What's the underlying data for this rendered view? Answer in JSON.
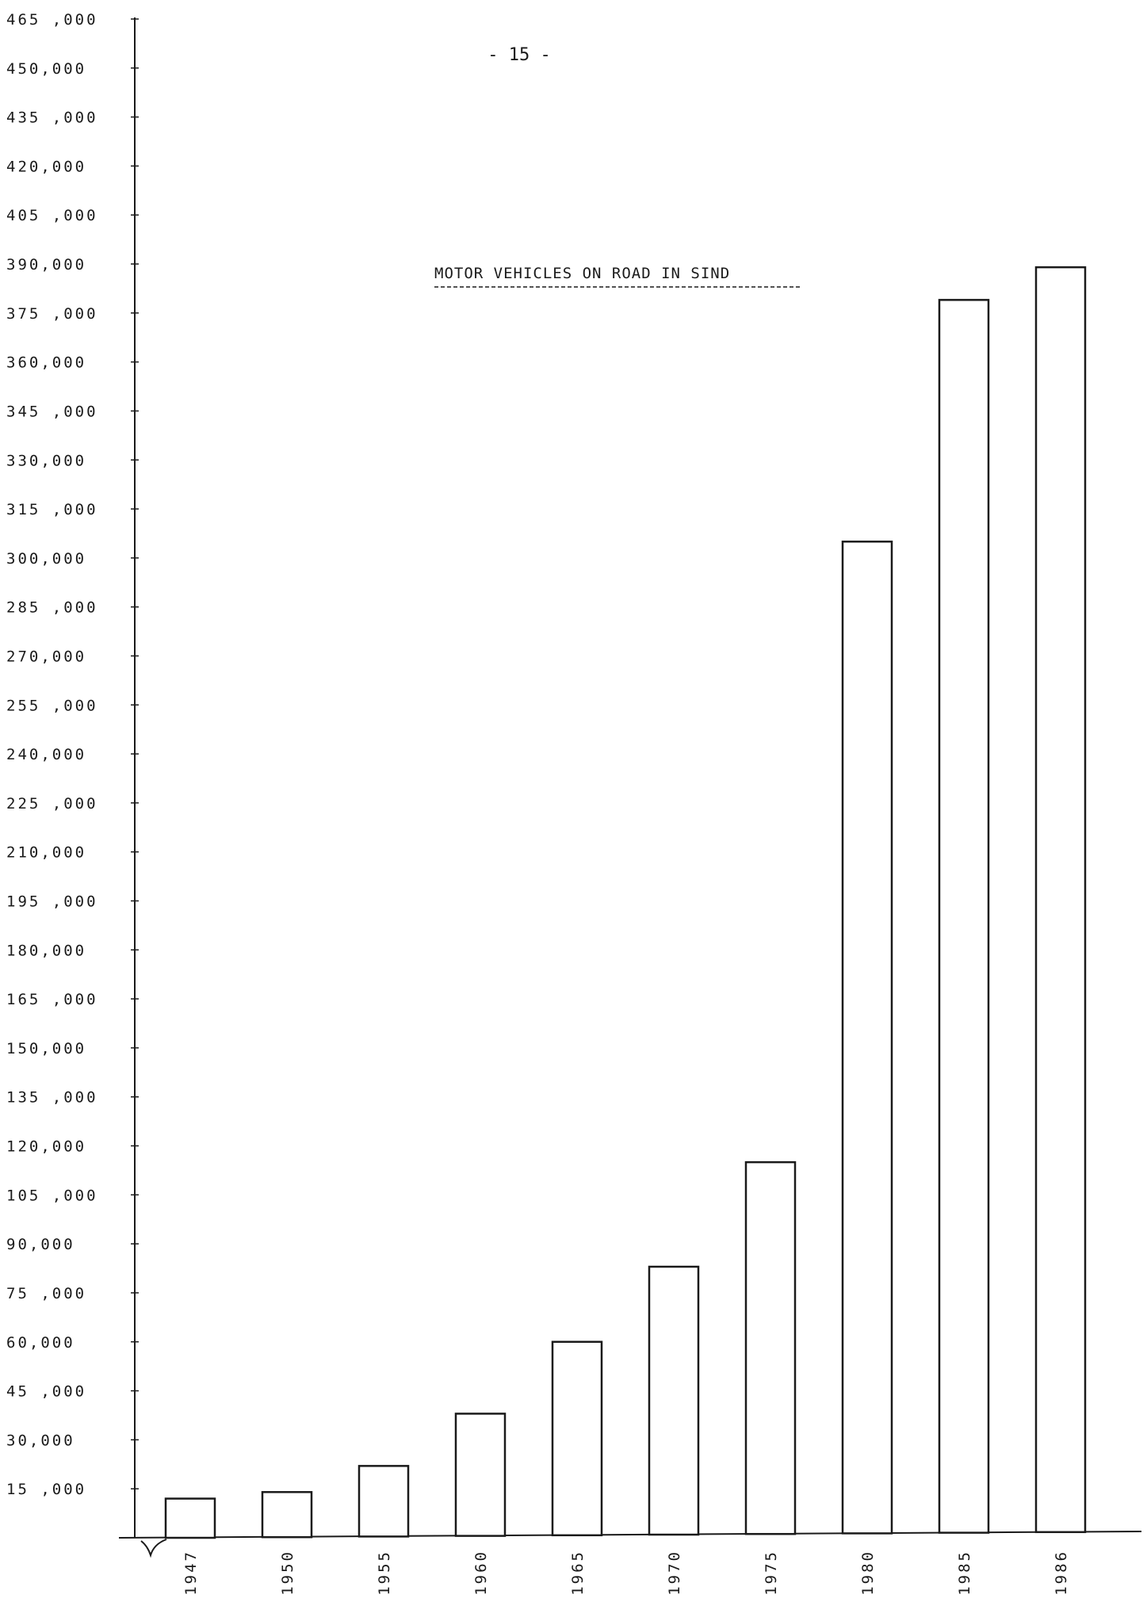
{
  "page_number_text": "-   15   -",
  "chart_data": {
    "type": "bar",
    "title": "MOTOR VEHICLES ON ROAD IN SIND",
    "xlabel": "",
    "ylabel": "",
    "categories": [
      "1947",
      "1950",
      "1955",
      "1960",
      "1965",
      "1970",
      "1975",
      "1980",
      "1985",
      "1986"
    ],
    "values": [
      12000,
      14000,
      22000,
      38000,
      60000,
      83000,
      115000,
      305000,
      379000,
      389000
    ],
    "ylim": [
      0,
      465000
    ],
    "yticks": [
      15000,
      30000,
      45000,
      60000,
      75000,
      90000,
      105000,
      120000,
      135000,
      150000,
      165000,
      180000,
      195000,
      210000,
      225000,
      240000,
      255000,
      270000,
      285000,
      300000,
      315000,
      330000,
      345000,
      360000,
      375000,
      390000,
      405000,
      420000,
      435000,
      450000,
      465000
    ],
    "ytick_labels": [
      "15 ,000",
      "30,000",
      "45 ,000",
      "60,000",
      "75 ,000",
      "90,000",
      "105 ,000",
      "120,000",
      "135 ,000",
      "150,000",
      "165 ,000",
      "180,000",
      "195 ,000",
      "210,000",
      "225 ,000",
      "240,000",
      "255 ,000",
      "270,000",
      "285 ,000",
      "300,000",
      "315 ,000",
      "330,000",
      "345 ,000",
      "360,000",
      "375 ,000",
      "390,000",
      "405 ,000",
      "420,000",
      "435 ,000",
      "450,000",
      "465 ,000"
    ],
    "grid": false,
    "legend": "none",
    "bar_fill": "#ffffff",
    "bar_stroke": "#1a1a1a"
  }
}
